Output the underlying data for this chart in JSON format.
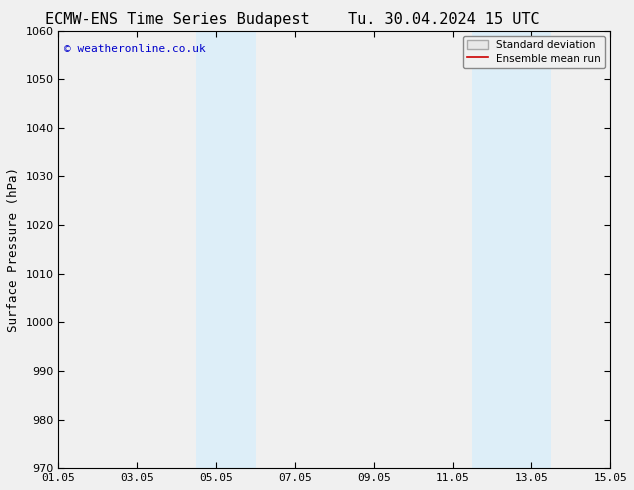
{
  "title_left": "ECMW-ENS Time Series Budapest",
  "title_right": "Tu. 30.04.2024 15 UTC",
  "ylabel": "Surface Pressure (hPa)",
  "xlabel": "",
  "ylim": [
    970,
    1060
  ],
  "yticks": [
    970,
    980,
    990,
    1000,
    1010,
    1020,
    1030,
    1040,
    1050,
    1060
  ],
  "xtick_labels": [
    "01.05",
    "03.05",
    "05.05",
    "07.05",
    "09.05",
    "11.05",
    "13.05",
    "15.05"
  ],
  "xtick_positions": [
    0,
    2,
    4,
    6,
    8,
    10,
    12,
    14
  ],
  "xlim": [
    0,
    14
  ],
  "shaded_bands": [
    {
      "x_start": 3.5,
      "x_end": 5.0
    },
    {
      "x_start": 10.5,
      "x_end": 12.5
    }
  ],
  "shaded_color": "#ddeef8",
  "watermark": "© weatheronline.co.uk",
  "watermark_color": "#0000cc",
  "legend_items": [
    {
      "label": "Standard deviation",
      "type": "patch",
      "facecolor": "#e8e8e8",
      "edgecolor": "#aaaaaa"
    },
    {
      "label": "Ensemble mean run",
      "type": "line",
      "color": "#cc0000"
    }
  ],
  "title_fontsize": 11,
  "tick_fontsize": 8,
  "ylabel_fontsize": 9,
  "watermark_fontsize": 8,
  "legend_fontsize": 7.5,
  "plot_bg_color": "#f0f0f0",
  "fig_bg_color": "#f0f0f0",
  "axes_edge_color": "#000000"
}
